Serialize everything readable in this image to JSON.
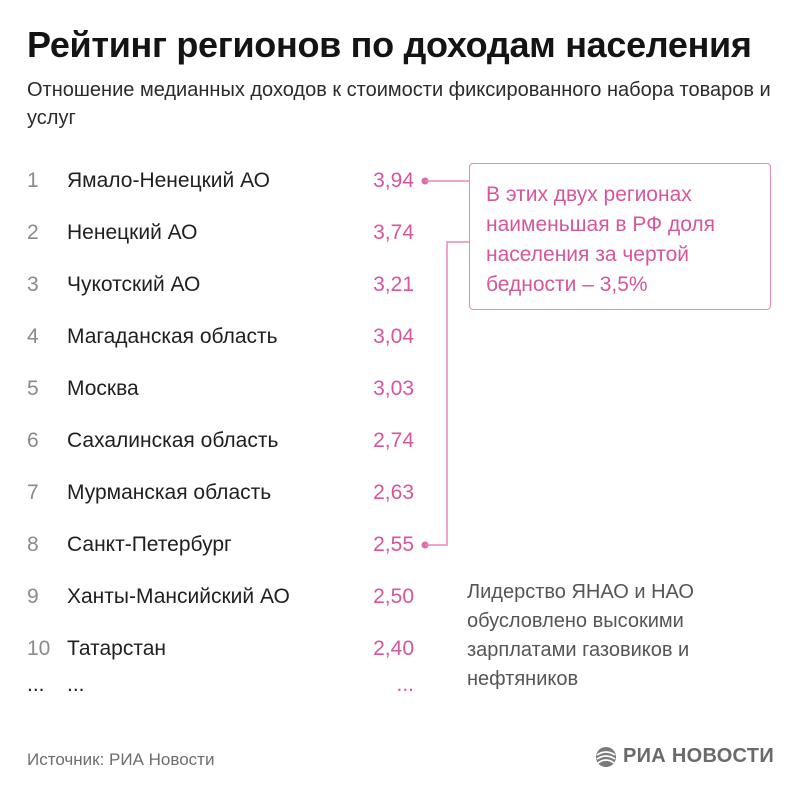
{
  "chart_data": {
    "type": "table",
    "title": "Рейтинг регионов по доходам населения",
    "subtitle": "Отношение медианных доходов к стоимости фиксированного набора товаров и услуг",
    "rows": [
      {
        "rank": "1",
        "region": "Ямало-Ненецкий АО",
        "value": "3,94"
      },
      {
        "rank": "2",
        "region": "Ненецкий АО",
        "value": "3,74"
      },
      {
        "rank": "3",
        "region": "Чукотский АО",
        "value": "3,21"
      },
      {
        "rank": "4",
        "region": "Магаданская область",
        "value": "3,04"
      },
      {
        "rank": "5",
        "region": "Москва",
        "value": "3,03"
      },
      {
        "rank": "6",
        "region": "Сахалинская область",
        "value": "2,74"
      },
      {
        "rank": "7",
        "region": "Мурманская область",
        "value": "2,63"
      },
      {
        "rank": "8",
        "region": "Санкт-Петербург",
        "value": "2,55"
      },
      {
        "rank": "9",
        "region": "Ханты-Мансийский АО",
        "value": "2,50"
      },
      {
        "rank": "10",
        "region": "Татарстан",
        "value": "2,40"
      }
    ],
    "ellipsis": {
      "rank": "...",
      "region": "...",
      "value": "..."
    },
    "callout": "В этих двух регионах наименьшая в РФ доля населения за чертой бедности – 3,5%",
    "note": "Лидерство ЯНАО и НАО обусловлено высокими зарплатами газовиков и нефтяников",
    "source": "Источник: РИА Новости",
    "logo_text": "РИА НОВОСТИ",
    "accent_color": "#d6569b"
  }
}
